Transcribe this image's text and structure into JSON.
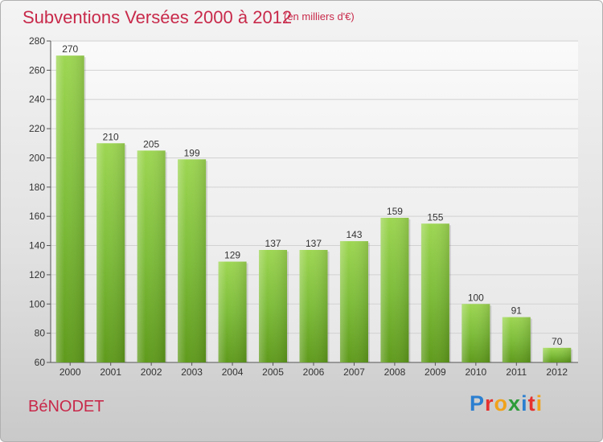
{
  "chart_data": {
    "type": "bar",
    "title": "Subventions Versées 2000 à 2012",
    "subtitle": "(en milliers d'€)",
    "categories": [
      "2000",
      "2001",
      "2002",
      "2003",
      "2004",
      "2005",
      "2006",
      "2007",
      "2008",
      "2009",
      "2010",
      "2011",
      "2012"
    ],
    "values": [
      270,
      210,
      205,
      199,
      129,
      137,
      137,
      143,
      159,
      155,
      100,
      91,
      70
    ],
    "ylim": [
      60,
      280
    ],
    "yticks": [
      60,
      80,
      100,
      120,
      140,
      160,
      180,
      200,
      220,
      240,
      260,
      280
    ],
    "grid": true,
    "bar_color": "#7ebd3a"
  },
  "footer": {
    "town": "BéNODET",
    "logo_letters": [
      {
        "ch": "P",
        "color": "#2b7fd0"
      },
      {
        "ch": "r",
        "color": "#e5312f"
      },
      {
        "ch": "o",
        "color": "#f0a21b"
      },
      {
        "ch": "x",
        "color": "#2e9c3b"
      },
      {
        "ch": "i",
        "color": "#2b7fd0"
      },
      {
        "ch": "t",
        "color": "#e5312f"
      },
      {
        "ch": "i",
        "color": "#f0a21b"
      }
    ]
  }
}
